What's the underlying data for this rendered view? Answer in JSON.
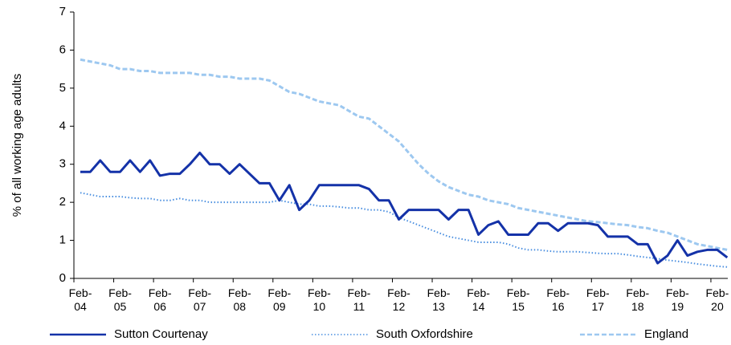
{
  "chart_data": {
    "type": "line",
    "ylabel": "% of all working age adults",
    "categories": [
      "Feb-04",
      null,
      null,
      null,
      "Feb-05",
      null,
      null,
      null,
      "Feb-06",
      null,
      null,
      null,
      "Feb-07",
      null,
      null,
      null,
      "Feb-08",
      null,
      null,
      null,
      "Feb-09",
      null,
      null,
      null,
      "Feb-10",
      null,
      null,
      null,
      "Feb-11",
      null,
      null,
      null,
      "Feb-12",
      null,
      null,
      null,
      "Feb-13",
      null,
      null,
      null,
      "Feb-14",
      null,
      null,
      null,
      "Feb-15",
      null,
      null,
      null,
      "Feb-16",
      null,
      null,
      null,
      "Feb-17",
      null,
      null,
      null,
      "Feb-18",
      null,
      null,
      null,
      "Feb-19",
      null,
      null,
      null,
      "Feb-20",
      null
    ],
    "series": [
      {
        "name": "Sutton Courtenay",
        "color": "#1432a8",
        "style": "solid",
        "values": [
          2.8,
          2.8,
          3.1,
          2.8,
          2.8,
          3.1,
          2.8,
          3.1,
          2.7,
          2.75,
          2.75,
          3.0,
          3.3,
          3.0,
          3.0,
          2.75,
          3.0,
          2.75,
          2.5,
          2.5,
          2.05,
          2.45,
          1.8,
          2.05,
          2.45,
          2.45,
          2.45,
          2.45,
          2.45,
          2.35,
          2.05,
          2.05,
          1.55,
          1.8,
          1.8,
          1.8,
          1.8,
          1.55,
          1.8,
          1.8,
          1.15,
          1.4,
          1.5,
          1.15,
          1.15,
          1.15,
          1.45,
          1.45,
          1.25,
          1.45,
          1.45,
          1.45,
          1.4,
          1.1,
          1.1,
          1.1,
          0.9,
          0.9,
          0.4,
          0.6,
          1.0,
          0.6,
          0.7,
          0.75,
          0.75,
          0.55
        ]
      },
      {
        "name": "South Oxfordshire",
        "color": "#4a8fe0",
        "style": "dotted",
        "values": [
          2.25,
          2.2,
          2.15,
          2.15,
          2.15,
          2.12,
          2.1,
          2.1,
          2.05,
          2.05,
          2.1,
          2.05,
          2.05,
          2.0,
          2.0,
          2.0,
          2.0,
          2.0,
          2.0,
          2.0,
          2.05,
          2.0,
          1.95,
          1.95,
          1.9,
          1.9,
          1.88,
          1.85,
          1.85,
          1.8,
          1.8,
          1.75,
          1.6,
          1.5,
          1.4,
          1.3,
          1.2,
          1.1,
          1.05,
          1.0,
          0.95,
          0.95,
          0.95,
          0.9,
          0.8,
          0.75,
          0.75,
          0.72,
          0.7,
          0.7,
          0.7,
          0.68,
          0.66,
          0.65,
          0.65,
          0.62,
          0.58,
          0.55,
          0.52,
          0.48,
          0.45,
          0.42,
          0.38,
          0.35,
          0.32,
          0.3
        ]
      },
      {
        "name": "England",
        "color": "#9dc8f0",
        "style": "dashed",
        "values": [
          5.75,
          5.7,
          5.65,
          5.6,
          5.5,
          5.5,
          5.45,
          5.45,
          5.4,
          5.4,
          5.4,
          5.4,
          5.35,
          5.35,
          5.3,
          5.3,
          5.25,
          5.25,
          5.25,
          5.2,
          5.05,
          4.9,
          4.85,
          4.75,
          4.65,
          4.6,
          4.55,
          4.4,
          4.25,
          4.2,
          4.0,
          3.8,
          3.6,
          3.3,
          3.0,
          2.75,
          2.55,
          2.4,
          2.3,
          2.2,
          2.15,
          2.05,
          2.0,
          1.95,
          1.85,
          1.8,
          1.75,
          1.7,
          1.65,
          1.6,
          1.55,
          1.5,
          1.48,
          1.45,
          1.42,
          1.4,
          1.35,
          1.32,
          1.25,
          1.2,
          1.1,
          1.0,
          0.9,
          0.85,
          0.8,
          0.75
        ]
      }
    ],
    "ylim": [
      0,
      7
    ],
    "yticks": [
      0,
      1,
      2,
      3,
      4,
      5,
      6,
      7
    ]
  }
}
